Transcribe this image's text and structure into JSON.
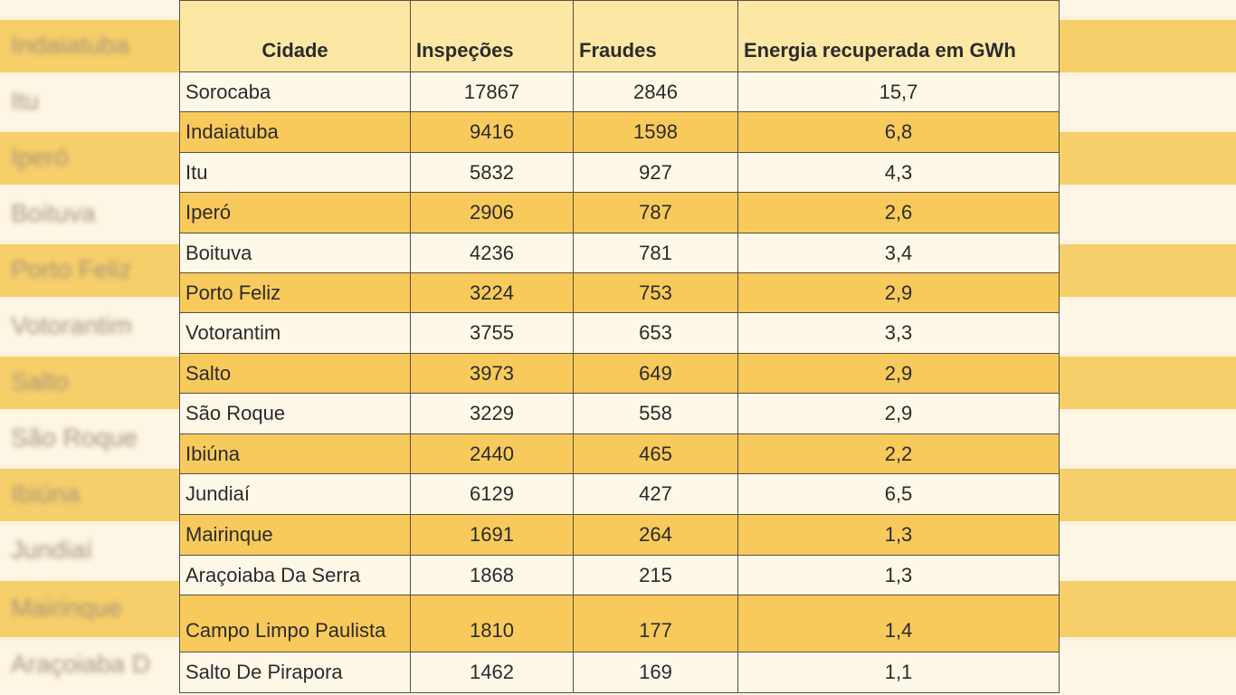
{
  "background": {
    "ghost_labels": [
      "Indaiatuba",
      "Itu",
      "Iperó",
      "Boituva",
      "Porto Feliz",
      "Votorantim",
      "Salto",
      "São Roque",
      "Ibiúna",
      "Jundiaí",
      "Mairinque",
      "Araçoiaba D"
    ]
  },
  "table": {
    "headers": [
      "Cidade",
      "Inspeções",
      "Fraudes",
      "Energia recuperada em GWh"
    ],
    "rows": [
      {
        "city": "Sorocaba",
        "inspections": "17867",
        "frauds": "2846",
        "energy": "15,7"
      },
      {
        "city": "Indaiatuba",
        "inspections": "9416",
        "frauds": "1598",
        "energy": "6,8"
      },
      {
        "city": "Itu",
        "inspections": "5832",
        "frauds": "927",
        "energy": "4,3"
      },
      {
        "city": "Iperó",
        "inspections": "2906",
        "frauds": "787",
        "energy": "2,6"
      },
      {
        "city": "Boituva",
        "inspections": "4236",
        "frauds": "781",
        "energy": "3,4"
      },
      {
        "city": "Porto Feliz",
        "inspections": "3224",
        "frauds": "753",
        "energy": "2,9"
      },
      {
        "city": "Votorantim",
        "inspections": "3755",
        "frauds": "653",
        "energy": "3,3"
      },
      {
        "city": "Salto",
        "inspections": "3973",
        "frauds": "649",
        "energy": "2,9"
      },
      {
        "city": "São Roque",
        "inspections": "3229",
        "frauds": "558",
        "energy": "2,9"
      },
      {
        "city": "Ibiúna",
        "inspections": "2440",
        "frauds": "465",
        "energy": "2,2"
      },
      {
        "city": "Jundiaí",
        "inspections": "6129",
        "frauds": "427",
        "energy": "6,5"
      },
      {
        "city": "Mairinque",
        "inspections": "1691",
        "frauds": "264",
        "energy": "1,3"
      },
      {
        "city": "Araçoiaba Da Serra",
        "inspections": "1868",
        "frauds": "215",
        "energy": "1,3"
      },
      {
        "city": "Campo Limpo Paulista",
        "inspections": "1810",
        "frauds": "177",
        "energy": "1,4"
      },
      {
        "city": "Salto De Pirapora",
        "inspections": "1462",
        "frauds": "169",
        "energy": "1,1"
      }
    ]
  },
  "colors": {
    "row_highlight": "#f8ca5b",
    "row_plain": "#fef8e8",
    "header_bg": "#fde7a4",
    "border": "#5a5142"
  }
}
